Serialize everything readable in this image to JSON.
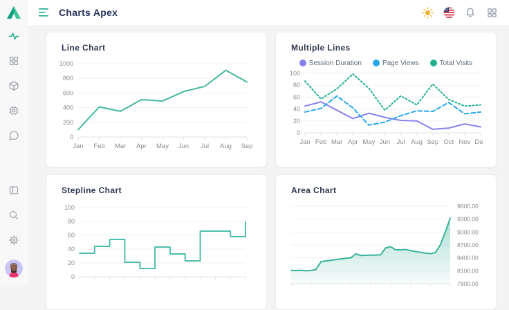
{
  "header": {
    "title": "Charts Apex",
    "icons": [
      "menu-icon",
      "sun-icon",
      "us-flag-icon",
      "bell-icon",
      "apps-grid-icon"
    ]
  },
  "sidebar": {
    "logo_icon": "triangle-logo",
    "top_icons": [
      "activity-icon",
      "dashboard-grid-icon",
      "package-box-icon",
      "cpu-chip-icon",
      "chat-bubble-icon"
    ],
    "bottom_icons": [
      "layout-panel-icon",
      "search-icon",
      "gear-icon"
    ],
    "avatar": "user-avatar",
    "active_item": "activity"
  },
  "colors": {
    "accent_teal": "#2bb394",
    "title_navy": "#2e3650",
    "axis_label_gray": "#8b8b8b",
    "sun_yellow": "#f2b32c",
    "icon_gray": "#9aa2ad"
  },
  "chart_data": [
    {
      "type": "line",
      "title": "Line Chart",
      "categories": [
        "Jan",
        "Feb",
        "Mar",
        "Apr",
        "May",
        "Jun",
        "Jul",
        "Aug",
        "Sep"
      ],
      "series": [
        {
          "name": "",
          "color": "#45b8a1",
          "dash": "solid",
          "values": [
            100,
            410,
            350,
            510,
            490,
            620,
            690,
            910,
            750
          ]
        }
      ],
      "ylim": [
        0,
        1000
      ],
      "ystep": 200,
      "yside": "left",
      "ydecimals": 0,
      "legend": false,
      "grid": true
    },
    {
      "type": "line",
      "title": "Multiple Lines",
      "categories": [
        "Jan",
        "Feb",
        "Mar",
        "Apr",
        "May",
        "Jun",
        "Jul",
        "Aug",
        "Sep",
        "Oct",
        "Nov",
        "Dec"
      ],
      "series": [
        {
          "name": "Session Duration",
          "color": "#8781ef",
          "dash": "solid",
          "values": [
            45,
            52,
            38,
            24,
            33,
            26,
            21,
            20,
            6,
            8,
            15,
            10
          ]
        },
        {
          "name": "Page Views",
          "color": "#28a7e9",
          "dash": "dashed",
          "values": [
            35,
            41,
            62,
            42,
            13,
            18,
            29,
            37,
            36,
            51,
            32,
            35
          ]
        },
        {
          "name": "Total Visits",
          "color": "#23b091",
          "dash": "dotted",
          "values": [
            87,
            57,
            74,
            99,
            75,
            38,
            62,
            47,
            82,
            56,
            45,
            47
          ]
        }
      ],
      "ylim": [
        0,
        100
      ],
      "ystep": 20,
      "yside": "left",
      "ydecimals": 0,
      "legend": true,
      "grid": true
    },
    {
      "type": "stepline",
      "title": "Stepline Chart",
      "categories": [],
      "xticks": 12,
      "series": [
        {
          "name": "",
          "color": "#4dbfae",
          "dash": "solid",
          "values": [
            34,
            44,
            54,
            21,
            12,
            43,
            33,
            23,
            66,
            66,
            58,
            79
          ]
        }
      ],
      "ylim": [
        0,
        100
      ],
      "ystep": 20,
      "yside": "left",
      "ydecimals": 0,
      "legend": false,
      "grid": true
    },
    {
      "type": "area",
      "title": "Area Chart",
      "categories": [],
      "xticks": 9,
      "series": [
        {
          "name": "",
          "color": "#3bb39a",
          "dash": "solid",
          "values": [
            8110,
            8105,
            8112,
            8100,
            8108,
            8130,
            8310,
            8330,
            8345,
            8360,
            8375,
            8390,
            8400,
            8495,
            8455,
            8460,
            8462,
            8465,
            8470,
            8630,
            8660,
            8590,
            8585,
            8595,
            8570,
            8550,
            8530,
            8512,
            8498,
            8520,
            8700,
            9000,
            9320
          ]
        }
      ],
      "ylim": [
        7800,
        9600
      ],
      "ystep": 300,
      "yside": "right",
      "ydecimals": 2,
      "legend": false,
      "grid": true
    }
  ]
}
